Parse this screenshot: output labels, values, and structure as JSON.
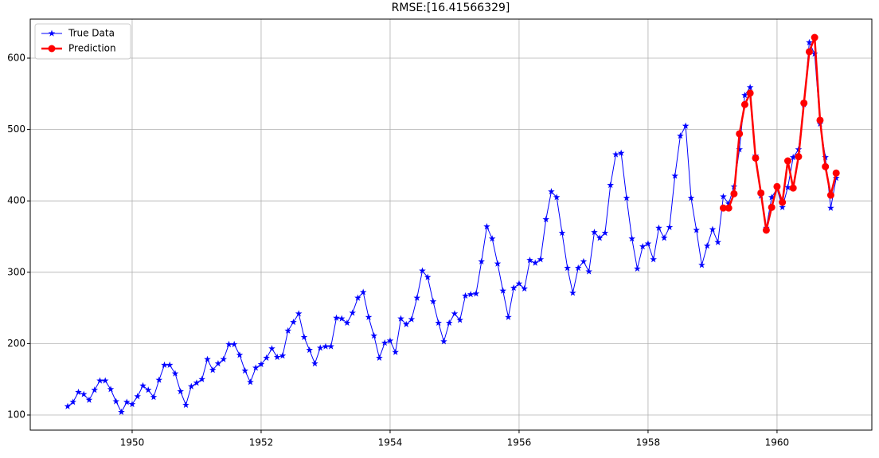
{
  "chart_data": {
    "type": "line",
    "title": "RMSE:[16.41566329]",
    "xlim": [
      1948.42,
      1961.47
    ],
    "ylim": [
      78.8,
      654.7
    ],
    "xticks": [
      1950,
      1952,
      1954,
      1956,
      1958,
      1960
    ],
    "yticks": [
      100,
      200,
      300,
      400,
      500,
      600
    ],
    "grid": true,
    "legend": "upper left",
    "series": [
      {
        "name": "True Data",
        "color": "#0000ff",
        "marker": "star",
        "linewidth": 1,
        "x": [
          1949,
          1949.083,
          1949.167,
          1949.25,
          1949.333,
          1949.417,
          1949.5,
          1949.583,
          1949.667,
          1949.75,
          1949.833,
          1949.917,
          1950,
          1950.083,
          1950.167,
          1950.25,
          1950.333,
          1950.417,
          1950.5,
          1950.583,
          1950.667,
          1950.75,
          1950.833,
          1950.917,
          1951,
          1951.083,
          1951.167,
          1951.25,
          1951.333,
          1951.417,
          1951.5,
          1951.583,
          1951.667,
          1951.75,
          1951.833,
          1951.917,
          1952,
          1952.083,
          1952.167,
          1952.25,
          1952.333,
          1952.417,
          1952.5,
          1952.583,
          1952.667,
          1952.75,
          1952.833,
          1952.917,
          1953,
          1953.083,
          1953.167,
          1953.25,
          1953.333,
          1953.417,
          1953.5,
          1953.583,
          1953.667,
          1953.75,
          1953.833,
          1953.917,
          1954,
          1954.083,
          1954.167,
          1954.25,
          1954.333,
          1954.417,
          1954.5,
          1954.583,
          1954.667,
          1954.75,
          1954.833,
          1954.917,
          1955,
          1955.083,
          1955.167,
          1955.25,
          1955.333,
          1955.417,
          1955.5,
          1955.583,
          1955.667,
          1955.75,
          1955.833,
          1955.917,
          1956,
          1956.083,
          1956.167,
          1956.25,
          1956.333,
          1956.417,
          1956.5,
          1956.583,
          1956.667,
          1956.75,
          1956.833,
          1956.917,
          1957,
          1957.083,
          1957.167,
          1957.25,
          1957.333,
          1957.417,
          1957.5,
          1957.583,
          1957.667,
          1957.75,
          1957.833,
          1957.917,
          1958,
          1958.083,
          1958.167,
          1958.25,
          1958.333,
          1958.417,
          1958.5,
          1958.583,
          1958.667,
          1958.75,
          1958.833,
          1958.917,
          1959,
          1959.083,
          1959.167,
          1959.25,
          1959.333,
          1959.417,
          1959.5,
          1959.583,
          1959.667,
          1959.75,
          1959.833,
          1959.917,
          1960,
          1960.083,
          1960.167,
          1960.25,
          1960.333,
          1960.417,
          1960.5,
          1960.583,
          1960.667,
          1960.75,
          1960.833,
          1960.917
        ],
        "values": [
          112,
          118,
          132,
          129,
          121,
          135,
          148,
          148,
          136,
          119,
          104,
          118,
          115,
          126,
          141,
          135,
          125,
          149,
          170,
          170,
          158,
          133,
          114,
          140,
          145,
          150,
          178,
          163,
          172,
          178,
          199,
          199,
          184,
          162,
          146,
          166,
          171,
          180,
          193,
          181,
          183,
          218,
          230,
          242,
          209,
          191,
          172,
          194,
          196,
          196,
          236,
          235,
          229,
          243,
          264,
          272,
          237,
          211,
          180,
          201,
          204,
          188,
          235,
          227,
          234,
          264,
          302,
          293,
          259,
          229,
          203,
          229,
          242,
          233,
          267,
          269,
          270,
          315,
          364,
          347,
          312,
          274,
          237,
          278,
          284,
          277,
          317,
          313,
          318,
          374,
          413,
          405,
          355,
          306,
          271,
          306,
          315,
          301,
          356,
          348,
          355,
          422,
          465,
          467,
          404,
          347,
          305,
          336,
          340,
          318,
          362,
          348,
          363,
          435,
          491,
          505,
          404,
          359,
          310,
          337,
          360,
          342,
          406,
          396,
          420,
          472,
          548,
          559,
          463,
          407,
          362,
          405,
          417,
          391,
          419,
          461,
          472,
          535,
          622,
          606,
          508,
          461,
          390,
          432
        ]
      },
      {
        "name": "Prediction",
        "color": "#ff0000",
        "marker": "circle",
        "linewidth": 2.5,
        "x": [
          1959.167,
          1959.25,
          1959.333,
          1959.417,
          1959.5,
          1959.583,
          1959.667,
          1959.75,
          1959.833,
          1959.917,
          1960,
          1960.083,
          1960.167,
          1960.25,
          1960.333,
          1960.417,
          1960.5,
          1960.583,
          1960.667,
          1960.75,
          1960.833,
          1960.917
        ],
        "values": [
          390,
          390,
          410,
          494,
          535,
          551,
          460,
          411,
          359,
          391,
          420,
          398,
          456,
          418,
          462,
          537,
          609,
          629,
          513,
          448,
          408,
          439
        ]
      }
    ]
  }
}
